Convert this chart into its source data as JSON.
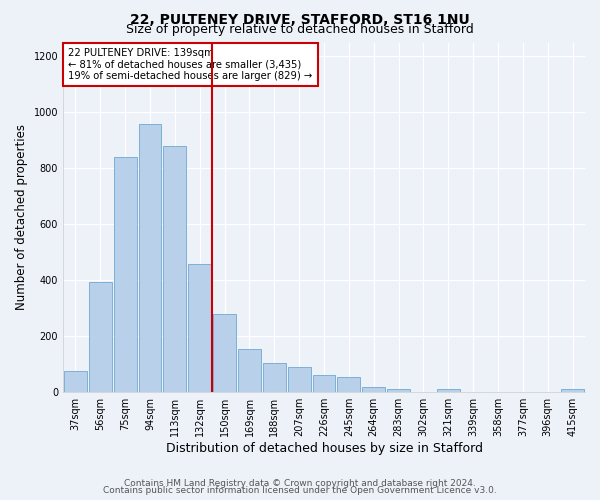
{
  "title_line1": "22, PULTENEY DRIVE, STAFFORD, ST16 1NU",
  "title_line2": "Size of property relative to detached houses in Stafford",
  "xlabel": "Distribution of detached houses by size in Stafford",
  "ylabel": "Number of detached properties",
  "categories": [
    "37sqm",
    "56sqm",
    "75sqm",
    "94sqm",
    "113sqm",
    "132sqm",
    "150sqm",
    "169sqm",
    "188sqm",
    "207sqm",
    "226sqm",
    "245sqm",
    "264sqm",
    "283sqm",
    "302sqm",
    "321sqm",
    "339sqm",
    "358sqm",
    "377sqm",
    "396sqm",
    "415sqm"
  ],
  "values": [
    75,
    395,
    840,
    960,
    880,
    460,
    280,
    155,
    105,
    90,
    60,
    55,
    18,
    10,
    0,
    10,
    0,
    0,
    0,
    0,
    10
  ],
  "bar_color": "#b8d0ea",
  "bar_edgecolor": "#6fa8d0",
  "vline_x": 5.5,
  "vline_color": "#cc0000",
  "annotation_text": "22 PULTENEY DRIVE: 139sqm\n← 81% of detached houses are smaller (3,435)\n19% of semi-detached houses are larger (829) →",
  "annotation_box_color": "#cc0000",
  "ylim": [
    0,
    1250
  ],
  "yticks": [
    0,
    200,
    400,
    600,
    800,
    1000,
    1200
  ],
  "footer_line1": "Contains HM Land Registry data © Crown copyright and database right 2024.",
  "footer_line2": "Contains public sector information licensed under the Open Government Licence v3.0.",
  "background_color": "#edf2f9",
  "grid_color": "#d0dae8",
  "title_fontsize": 10,
  "subtitle_fontsize": 9,
  "tick_fontsize": 7,
  "ylabel_fontsize": 8.5,
  "xlabel_fontsize": 9,
  "footer_fontsize": 6.5
}
